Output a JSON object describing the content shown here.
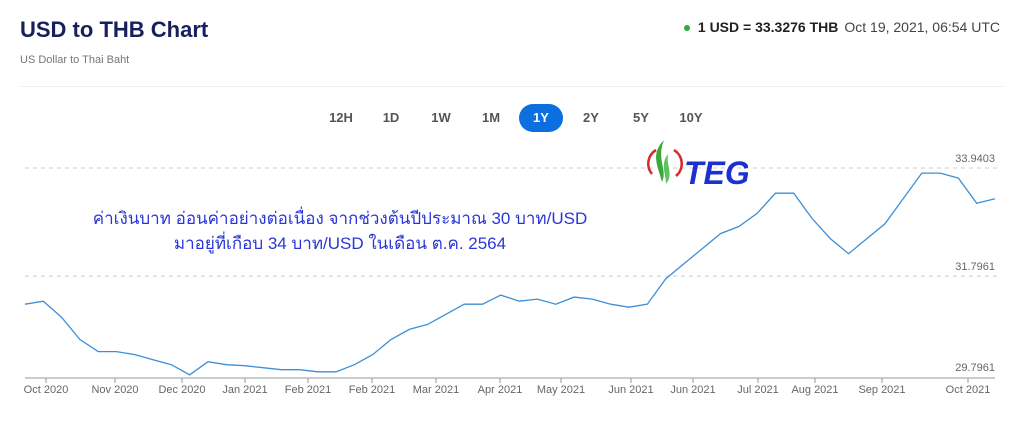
{
  "header": {
    "title": "USD to THB Chart",
    "subtitle": "US Dollar to Thai Baht",
    "rate": "1 USD = 33.3276 THB",
    "timestamp": "Oct 19, 2021, 06:54 UTC",
    "status_color": "#2eaa3c"
  },
  "ranges": [
    "12H",
    "1D",
    "1W",
    "1M",
    "1Y",
    "2Y",
    "5Y",
    "10Y"
  ],
  "active_range": "1Y",
  "annotation": {
    "line1": "ค่าเงินบาท อ่อนค่าอย่างต่อเนื่อง จากช่วงต้นปีประมาณ 30 บาท/USD",
    "line2": "มาอยู่ที่เกือบ 34 บาท/USD ในเดือน ต.ค. 2564"
  },
  "logo": {
    "text": "TEG"
  },
  "chart_data": {
    "type": "line",
    "title": "",
    "xlabel": "",
    "ylabel": "",
    "ylim": [
      29.7961,
      33.9403
    ],
    "y_ticks": [
      "33.9403",
      "31.7961",
      "29.7961"
    ],
    "x_ticks": [
      "Oct 2020",
      "Nov 2020",
      "Dec 2020",
      "Jan 2021",
      "Feb 2021",
      "Feb 2021",
      "Mar 2021",
      "Apr 2021",
      "May 2021",
      "Jun 2021",
      "Jun 2021",
      "Jul 2021",
      "Aug 2021",
      "Sep 2021",
      "Oct 2021"
    ],
    "grid": "horizontal dashed",
    "color": "#3d8fd8",
    "values": [
      31.24,
      31.3,
      30.98,
      30.54,
      30.3,
      30.3,
      30.24,
      30.14,
      30.04,
      29.84,
      30.1,
      30.04,
      30.02,
      29.98,
      29.94,
      29.94,
      29.9,
      29.9,
      30.04,
      30.24,
      30.54,
      30.74,
      30.84,
      31.04,
      31.24,
      31.24,
      31.42,
      31.3,
      31.34,
      31.24,
      31.38,
      31.34,
      31.24,
      31.18,
      31.24,
      31.74,
      32.04,
      32.34,
      32.64,
      32.78,
      33.04,
      33.44,
      33.44,
      32.94,
      32.54,
      32.24,
      32.54,
      32.84,
      33.34,
      33.84,
      33.84,
      33.74,
      33.24,
      33.33
    ]
  }
}
